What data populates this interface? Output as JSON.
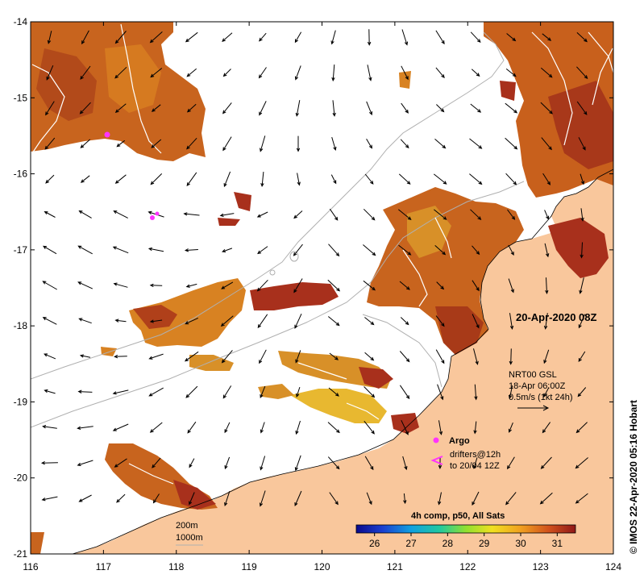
{
  "map": {
    "lon_ticks": [
      "116",
      "117",
      "118",
      "119",
      "120",
      "121",
      "122",
      "123",
      "124"
    ],
    "lat_ticks": [
      "-14",
      "-15",
      "-16",
      "-17",
      "-18",
      "-19",
      "-20",
      "-21"
    ],
    "lon_range": [
      116,
      124
    ],
    "lat_range": [
      -21,
      -14
    ],
    "date_label": "20-Apr-2020 08Z",
    "credit": "© IMOS 22-Apr-2020 05:16 Hobart",
    "current_legend": {
      "line1": "NRT00 GSL",
      "line2": "18-Apr 06:00Z",
      "line3": "0.5m/s (1kt 24h)"
    },
    "argo_label": "Argo",
    "drifter_line1": "drifters@12h",
    "drifter_line2": "to 20/04 12Z",
    "isobath_200": "200m",
    "isobath_1000": "1000m",
    "colorbar": {
      "title": "4h comp, p50, All Sats",
      "ticks": [
        "26",
        "27",
        "28",
        "29",
        "30",
        "31"
      ],
      "range": [
        25.5,
        31.5
      ]
    },
    "colors": {
      "land": "#f9c79c",
      "sst_warm": "#c8561c",
      "sst_hot": "#a52a1a",
      "sst_mid": "#e0901c",
      "argo": "#ff33ff",
      "isobath": "#b0b0b0"
    }
  }
}
